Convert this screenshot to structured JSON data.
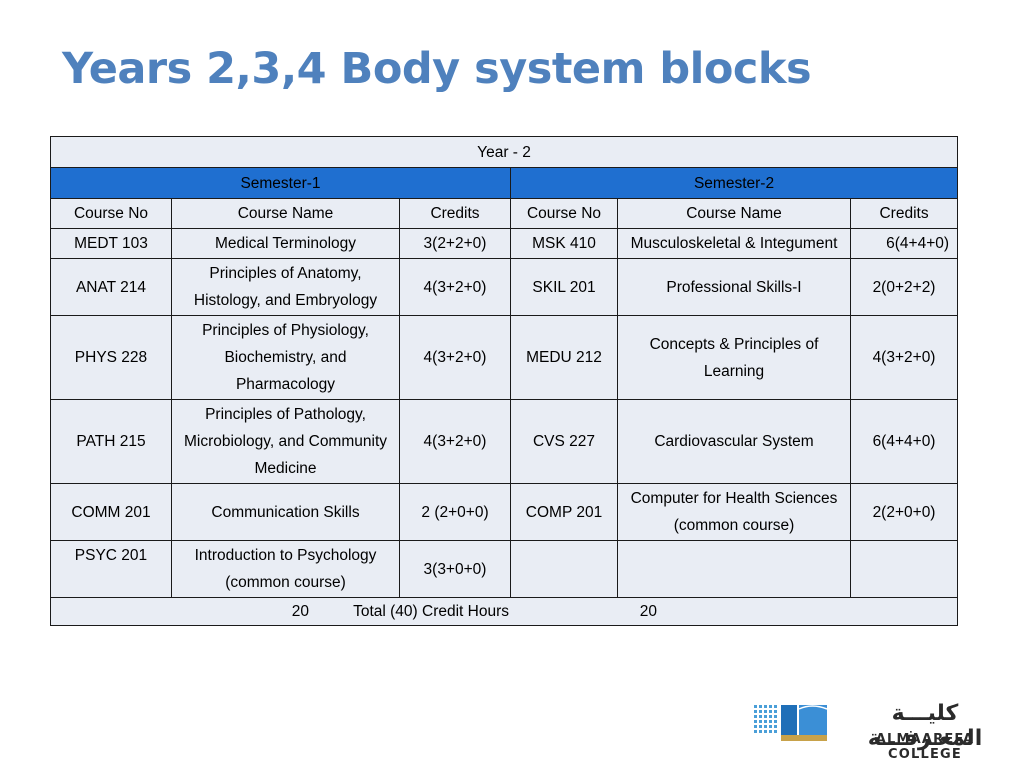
{
  "title": "Years 2,3,4 Body system blocks",
  "table": {
    "year_label": "Year - 2",
    "semester1_label": "Semester-1",
    "semester2_label": "Semester-2",
    "headers": [
      "Course No",
      "Course Name",
      "Credits",
      "Course No",
      "Course Name",
      "Credits"
    ],
    "rows": [
      [
        "MEDT 103",
        "Medical Terminology",
        "3(2+2+0)",
        "MSK 410",
        "Musculoskeletal & Integument",
        "6(4+4+0)"
      ],
      [
        "ANAT 214",
        "Principles of Anatomy, Histology, and Embryology",
        "4(3+2+0)",
        "SKIL 201",
        "Professional Skills-I",
        "2(0+2+2)"
      ],
      [
        "PHYS 228",
        "Principles of Physiology, Biochemistry, and Pharmacology",
        "4(3+2+0)",
        "MEDU 212",
        "Concepts & Principles of Learning",
        "4(3+2+0)"
      ],
      [
        "PATH 215",
        "Principles of Pathology, Microbiology, and Community Medicine",
        "4(3+2+0)",
        "CVS 227",
        "Cardiovascular System",
        "6(4+4+0)"
      ],
      [
        "COMM 201",
        "Communication Skills",
        "2 (2+0+0)",
        "COMP 201",
        "Computer  for Health Sciences (common course)",
        "2(2+0+0)"
      ],
      [
        "PSYC 201",
        "Introduction to Psychology (common course)",
        "3(3+0+0)",
        "",
        "",
        ""
      ]
    ],
    "total": {
      "semester1": "20",
      "label": "Total  (40) Credit Hours",
      "semester2": "20"
    }
  },
  "logo": {
    "arabic": "كليـــة المعـرفـــة",
    "english": "ALMAAREFA COLLEGE"
  },
  "colors": {
    "title": "#4f81bd",
    "semester_band": "#1f6fd0",
    "cell_bg": "#e9edf4"
  }
}
